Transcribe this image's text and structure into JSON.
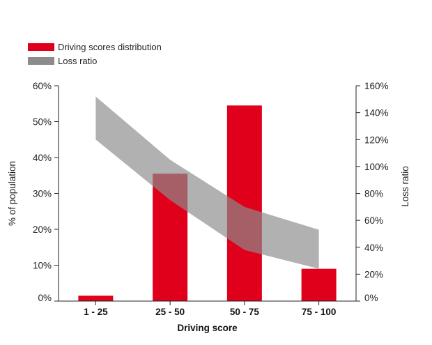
{
  "legend": {
    "bars_label": "Driving scores distribution",
    "band_label": "Loss ratio"
  },
  "colors": {
    "bar": "#e0001b",
    "band": "#8c8c8c"
  },
  "chart_data": {
    "type": "bar",
    "categories": [
      "1 - 25",
      "25 - 50",
      "50 - 75",
      "75 - 100"
    ],
    "series": [
      {
        "name": "Driving scores distribution",
        "axis": "left",
        "type": "bar",
        "values": [
          1.5,
          35.5,
          54.5,
          9
        ]
      },
      {
        "name": "Loss ratio",
        "axis": "right",
        "type": "area-band",
        "lower": [
          120,
          75,
          38,
          24
        ],
        "upper": [
          152,
          105,
          70,
          53
        ]
      }
    ],
    "xlabel": "Driving score",
    "ylabel_left": "% of population",
    "ylabel_right": "Loss ratio",
    "ylim_left": [
      0,
      60
    ],
    "ylim_right": [
      0,
      160
    ],
    "yticks_left": [
      "0%",
      "10%",
      "20%",
      "30%",
      "40%",
      "50%",
      "60%"
    ],
    "yticks_right": [
      "0%",
      "20%",
      "40%",
      "60%",
      "80%",
      "100%",
      "120%",
      "140%",
      "160%"
    ],
    "grid": false,
    "legend_position": "top-left"
  }
}
